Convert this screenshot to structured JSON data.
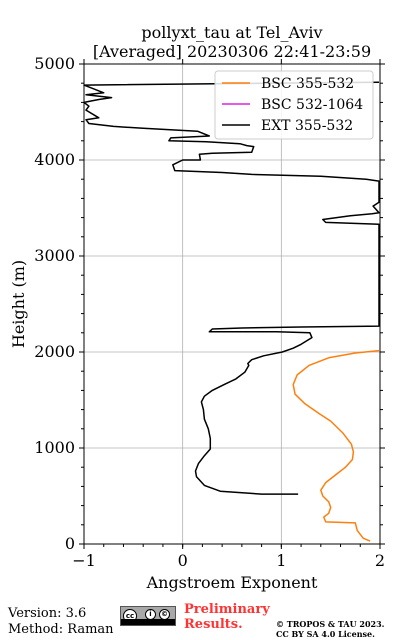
{
  "chart_data": {
    "type": "line",
    "title": "pollyxt_tau at Tel_Aviv",
    "subtitle": "[Averaged] 20230306 22:41-23:59",
    "xlabel": "Angstroem Exponent",
    "ylabel": "Height (m)",
    "xlim": [
      -1,
      2
    ],
    "ylim": [
      0,
      5000
    ],
    "xticks": [
      "−1",
      "0",
      "1",
      "2"
    ],
    "yticks": [
      "0",
      "1000",
      "2000",
      "3000",
      "4000",
      "5000"
    ],
    "grid": true,
    "legend_position": "top-right",
    "series": [
      {
        "name": "BSC 355-532",
        "color": "#ff7f0e",
        "points": [
          [
            1.9,
            30
          ],
          [
            1.83,
            60
          ],
          [
            1.77,
            140
          ],
          [
            1.75,
            220
          ],
          [
            1.45,
            230
          ],
          [
            1.43,
            280
          ],
          [
            1.48,
            320
          ],
          [
            1.5,
            380
          ],
          [
            1.48,
            440
          ],
          [
            1.42,
            500
          ],
          [
            1.4,
            560
          ],
          [
            1.45,
            640
          ],
          [
            1.55,
            720
          ],
          [
            1.65,
            800
          ],
          [
            1.72,
            880
          ],
          [
            1.73,
            960
          ],
          [
            1.71,
            1040
          ],
          [
            1.62,
            1160
          ],
          [
            1.5,
            1280
          ],
          [
            1.38,
            1360
          ],
          [
            1.24,
            1460
          ],
          [
            1.14,
            1560
          ],
          [
            1.12,
            1660
          ],
          [
            1.16,
            1760
          ],
          [
            1.28,
            1860
          ],
          [
            1.48,
            1940
          ],
          [
            1.75,
            1990
          ],
          [
            1.99,
            2015
          ]
        ]
      },
      {
        "name": "BSC 532-1064",
        "color": "#e020e0",
        "points": []
      },
      {
        "name": "EXT 355-532",
        "color": "#000000",
        "points": [
          [
            1.17,
            520
          ],
          [
            0.8,
            520
          ],
          [
            0.38,
            550
          ],
          [
            0.22,
            610
          ],
          [
            0.14,
            700
          ],
          [
            0.13,
            760
          ],
          [
            0.16,
            840
          ],
          [
            0.22,
            920
          ],
          [
            0.28,
            990
          ],
          [
            0.28,
            1100
          ],
          [
            0.26,
            1200
          ],
          [
            0.22,
            1300
          ],
          [
            0.21,
            1400
          ],
          [
            0.19,
            1480
          ],
          [
            0.22,
            1540
          ],
          [
            0.3,
            1600
          ],
          [
            0.42,
            1660
          ],
          [
            0.54,
            1720
          ],
          [
            0.63,
            1790
          ],
          [
            0.67,
            1860
          ],
          [
            0.66,
            1880
          ],
          [
            0.7,
            1920
          ],
          [
            0.82,
            1960
          ],
          [
            1.01,
            2000
          ],
          [
            1.12,
            2040
          ],
          [
            1.2,
            2080
          ],
          [
            1.31,
            2150
          ],
          [
            1.29,
            2200
          ],
          [
            0.95,
            2210
          ],
          [
            0.27,
            2210
          ],
          [
            0.3,
            2240
          ],
          [
            0.6,
            2250
          ],
          [
            1.2,
            2260
          ],
          [
            1.99,
            2270
          ],
          [
            1.99,
            3330
          ],
          [
            1.45,
            3350
          ],
          [
            1.42,
            3380
          ],
          [
            1.7,
            3420
          ],
          [
            1.92,
            3440
          ],
          [
            1.99,
            3450
          ],
          [
            1.93,
            3520
          ],
          [
            1.99,
            3560
          ],
          [
            1.99,
            3780
          ],
          [
            1.86,
            3800
          ],
          [
            1.4,
            3830
          ],
          [
            0.7,
            3850
          ],
          [
            0.4,
            3870
          ],
          [
            -0.08,
            3890
          ],
          [
            -0.1,
            3950
          ],
          [
            0.0,
            4000
          ],
          [
            0.18,
            4000
          ],
          [
            0.17,
            4060
          ],
          [
            0.3,
            4070
          ],
          [
            0.7,
            4080
          ],
          [
            0.72,
            4140
          ],
          [
            0.65,
            4150
          ],
          [
            0.58,
            4170
          ],
          [
            0.24,
            4190
          ],
          [
            -0.14,
            4200
          ],
          [
            -0.12,
            4230
          ],
          [
            0.27,
            4250
          ],
          [
            0.15,
            4300
          ],
          [
            -0.4,
            4330
          ],
          [
            -0.7,
            4350
          ],
          [
            -0.95,
            4380
          ],
          [
            -0.98,
            4420
          ],
          [
            -0.85,
            4440
          ],
          [
            -0.98,
            4520
          ],
          [
            -0.95,
            4560
          ],
          [
            -1.0,
            4600
          ],
          [
            -0.85,
            4630
          ],
          [
            -0.72,
            4650
          ],
          [
            -0.98,
            4680
          ],
          [
            -0.8,
            4700
          ],
          [
            -1.0,
            4780
          ],
          [
            1.99,
            4810
          ]
        ]
      }
    ]
  },
  "footer": {
    "version": "Version: 3.6",
    "method": "Method: Raman",
    "preliminary_line1": "Preliminary",
    "preliminary_line2": "Results.",
    "license_line1": "© TROPOS & TAU 2023.",
    "license_line2": "CC BY SA 4.0 License.",
    "badge_text": "BY SA"
  }
}
